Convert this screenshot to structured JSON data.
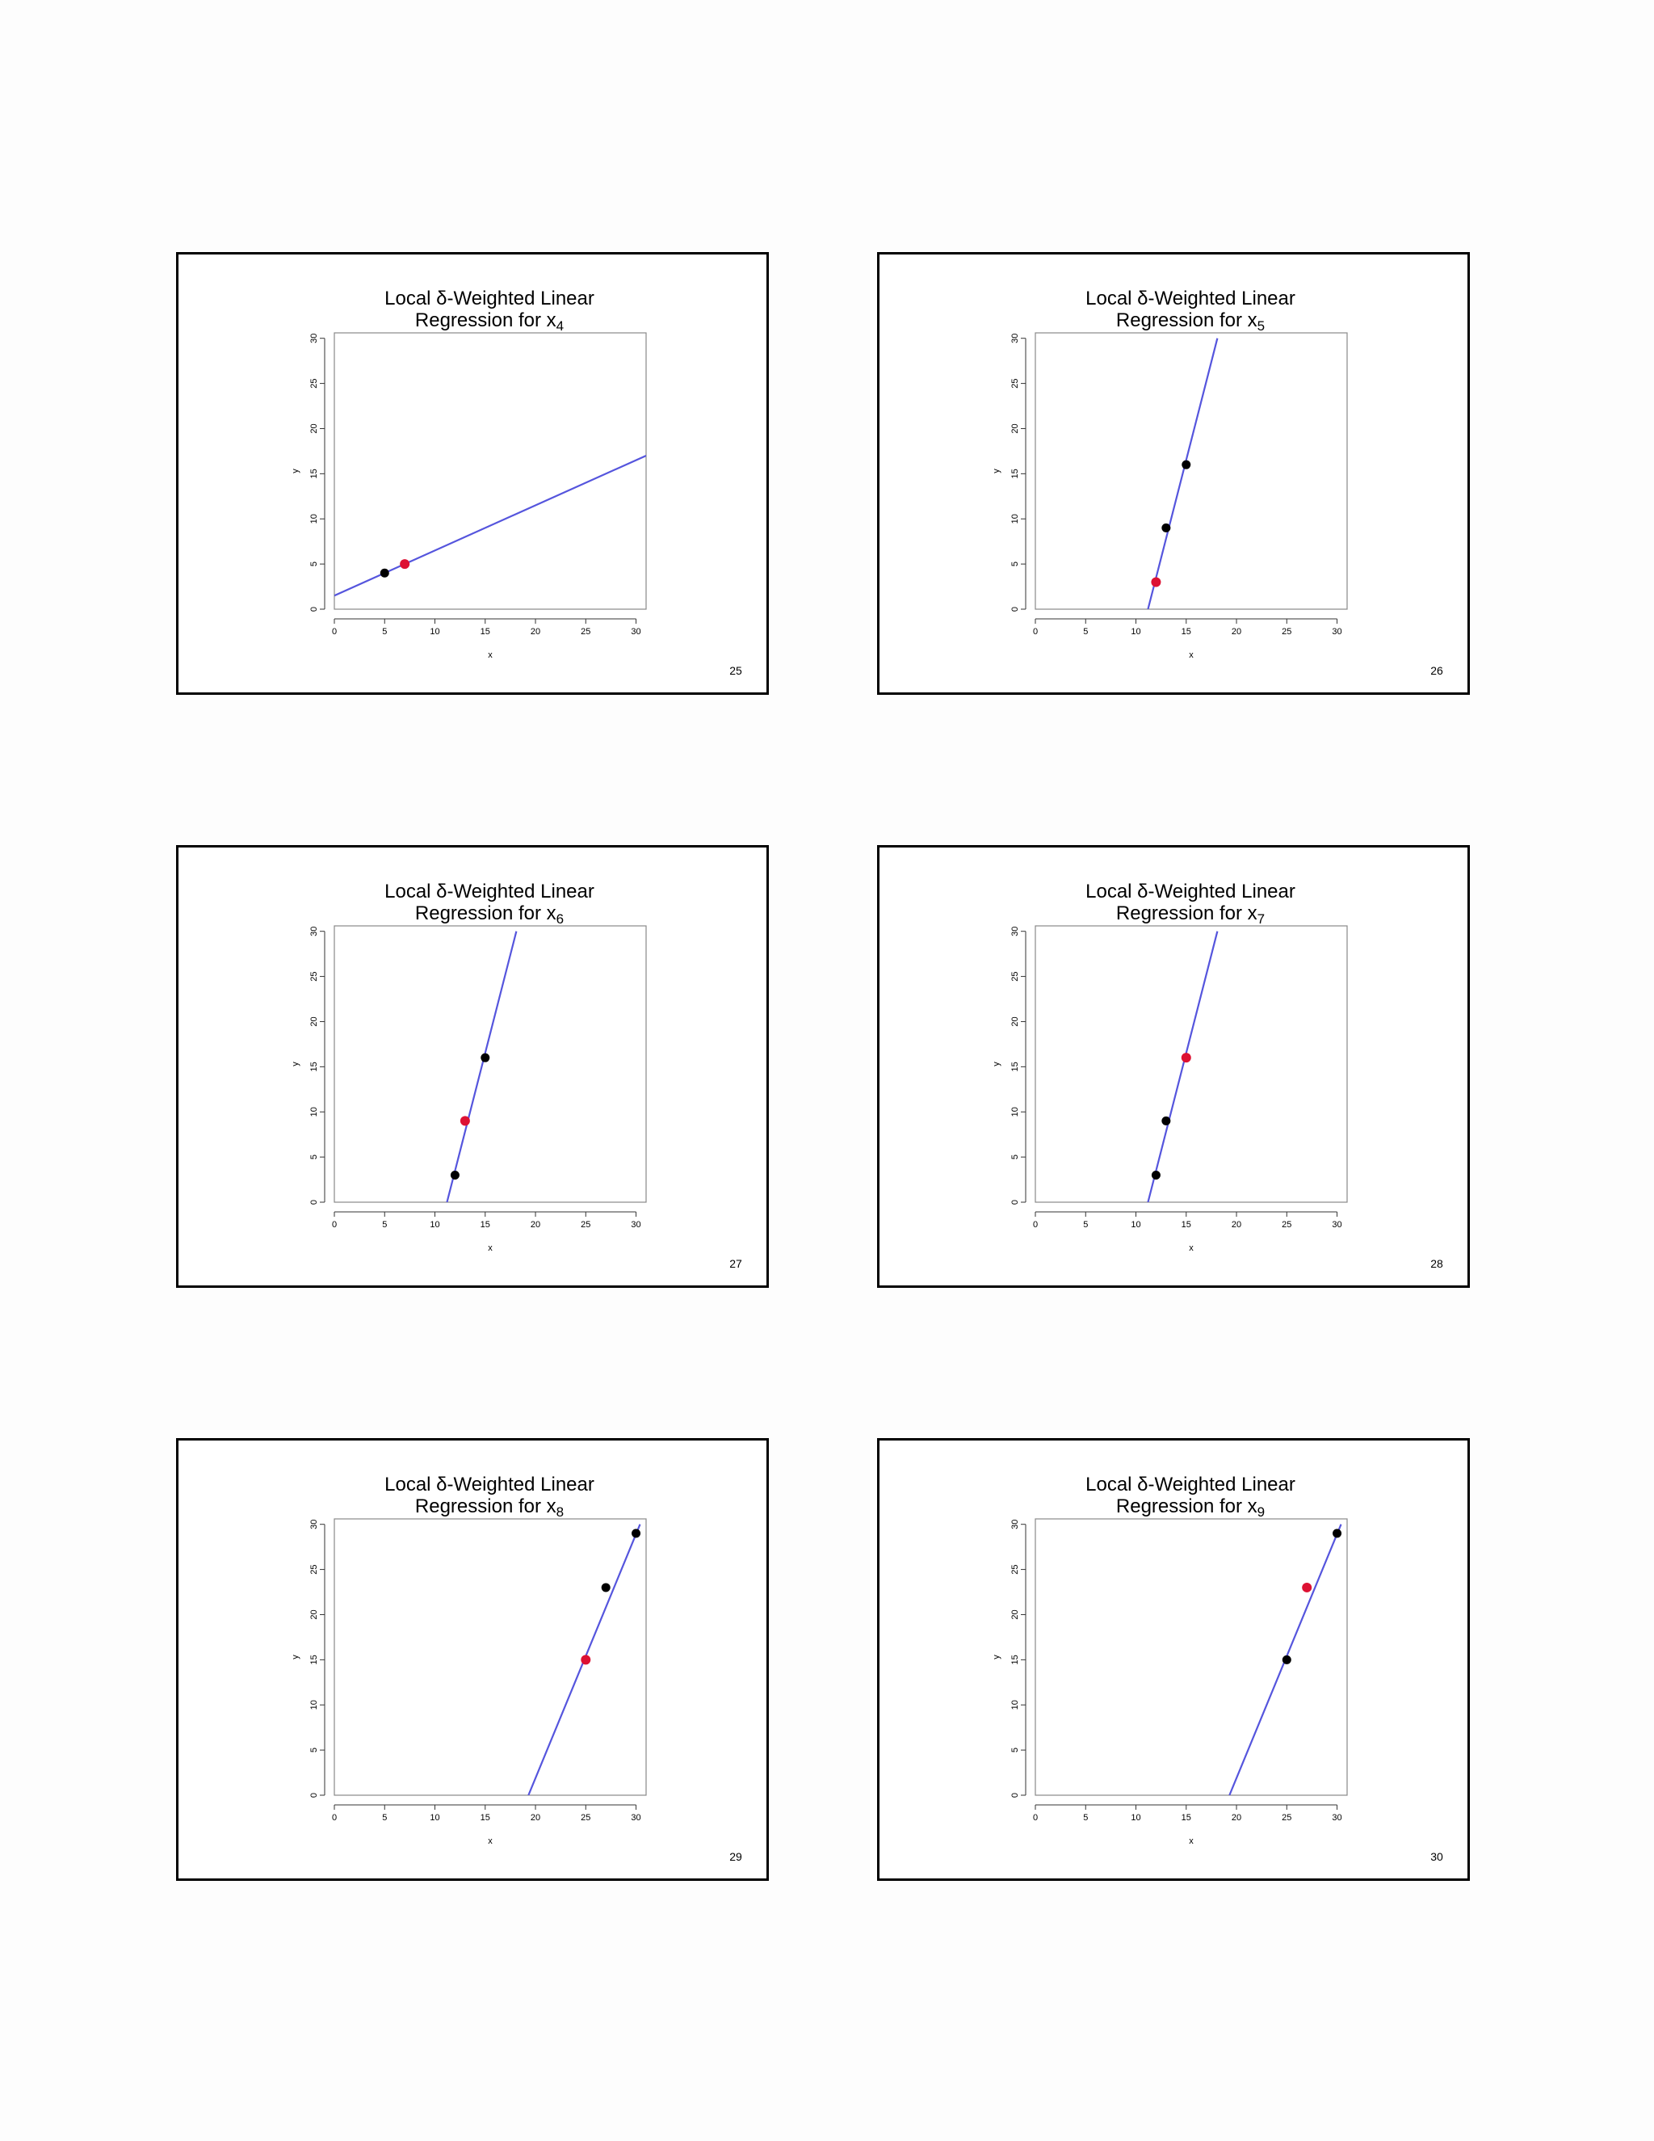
{
  "slides": [
    {
      "page": "25",
      "title_line1": "Local δ-Weighted Linear",
      "title_line2_prefix": "Regression for x",
      "title_subscript": "4"
    },
    {
      "page": "26",
      "title_line1": "Local δ-Weighted Linear",
      "title_line2_prefix": "Regression for x",
      "title_subscript": "5"
    },
    {
      "page": "27",
      "title_line1": "Local δ-Weighted Linear",
      "title_line2_prefix": "Regression for x",
      "title_subscript": "6"
    },
    {
      "page": "28",
      "title_line1": "Local δ-Weighted Linear",
      "title_line2_prefix": "Regression for x",
      "title_subscript": "7"
    },
    {
      "page": "29",
      "title_line1": "Local δ-Weighted Linear",
      "title_line2_prefix": "Regression for x",
      "title_subscript": "8"
    },
    {
      "page": "30",
      "title_line1": "Local δ-Weighted Linear",
      "title_line2_prefix": "Regression for x",
      "title_subscript": "9"
    }
  ],
  "colors": {
    "line": "#5555dd",
    "query_point": "#dd1133",
    "data_point": "#000000"
  },
  "chart_data": [
    {
      "type": "scatter",
      "title": "Local δ-Weighted Linear Regression for x4",
      "xlabel": "x",
      "ylabel": "y",
      "xlim": [
        0,
        31
      ],
      "ylim": [
        0,
        30
      ],
      "xticks": [
        0,
        5,
        10,
        15,
        20,
        25,
        30
      ],
      "yticks": [
        0,
        5,
        10,
        15,
        20,
        25,
        30
      ],
      "points": [
        {
          "x": 5,
          "y": 4,
          "kind": "data"
        },
        {
          "x": 7,
          "y": 5,
          "kind": "query"
        }
      ],
      "line": {
        "x1": 0,
        "y1": 1.5,
        "x2": 31,
        "y2": 17
      }
    },
    {
      "type": "scatter",
      "title": "Local δ-Weighted Linear Regression for x5",
      "xlabel": "x",
      "ylabel": "y",
      "xlim": [
        0,
        31
      ],
      "ylim": [
        0,
        30
      ],
      "xticks": [
        0,
        5,
        10,
        15,
        20,
        25,
        30
      ],
      "yticks": [
        0,
        5,
        10,
        15,
        20,
        25,
        30
      ],
      "points": [
        {
          "x": 15,
          "y": 16,
          "kind": "data"
        },
        {
          "x": 13,
          "y": 9,
          "kind": "data"
        },
        {
          "x": 12,
          "y": 3,
          "kind": "query"
        }
      ],
      "line": {
        "x1": 11.2,
        "y1": 0,
        "x2": 18.1,
        "y2": 30
      }
    },
    {
      "type": "scatter",
      "title": "Local δ-Weighted Linear Regression for x6",
      "xlabel": "x",
      "ylabel": "y",
      "xlim": [
        0,
        31
      ],
      "ylim": [
        0,
        30
      ],
      "xticks": [
        0,
        5,
        10,
        15,
        20,
        25,
        30
      ],
      "yticks": [
        0,
        5,
        10,
        15,
        20,
        25,
        30
      ],
      "points": [
        {
          "x": 15,
          "y": 16,
          "kind": "data"
        },
        {
          "x": 12,
          "y": 3,
          "kind": "data"
        },
        {
          "x": 13,
          "y": 9,
          "kind": "query"
        }
      ],
      "line": {
        "x1": 11.2,
        "y1": 0,
        "x2": 18.1,
        "y2": 30
      }
    },
    {
      "type": "scatter",
      "title": "Local δ-Weighted Linear Regression for x7",
      "xlabel": "x",
      "ylabel": "y",
      "xlim": [
        0,
        31
      ],
      "ylim": [
        0,
        30
      ],
      "xticks": [
        0,
        5,
        10,
        15,
        20,
        25,
        30
      ],
      "yticks": [
        0,
        5,
        10,
        15,
        20,
        25,
        30
      ],
      "points": [
        {
          "x": 13,
          "y": 9,
          "kind": "data"
        },
        {
          "x": 12,
          "y": 3,
          "kind": "data"
        },
        {
          "x": 15,
          "y": 16,
          "kind": "query"
        }
      ],
      "line": {
        "x1": 11.2,
        "y1": 0,
        "x2": 18.1,
        "y2": 30
      }
    },
    {
      "type": "scatter",
      "title": "Local δ-Weighted Linear Regression for x8",
      "xlabel": "x",
      "ylabel": "y",
      "xlim": [
        0,
        31
      ],
      "ylim": [
        0,
        30
      ],
      "xticks": [
        0,
        5,
        10,
        15,
        20,
        25,
        30
      ],
      "yticks": [
        0,
        5,
        10,
        15,
        20,
        25,
        30
      ],
      "points": [
        {
          "x": 30,
          "y": 29,
          "kind": "data"
        },
        {
          "x": 27,
          "y": 23,
          "kind": "data"
        },
        {
          "x": 25,
          "y": 15,
          "kind": "query"
        }
      ],
      "line": {
        "x1": 19.3,
        "y1": 0,
        "x2": 30.4,
        "y2": 30
      }
    },
    {
      "type": "scatter",
      "title": "Local δ-Weighted Linear Regression for x9",
      "xlabel": "x",
      "ylabel": "y",
      "xlim": [
        0,
        31
      ],
      "ylim": [
        0,
        30
      ],
      "xticks": [
        0,
        5,
        10,
        15,
        20,
        25,
        30
      ],
      "yticks": [
        0,
        5,
        10,
        15,
        20,
        25,
        30
      ],
      "points": [
        {
          "x": 30,
          "y": 29,
          "kind": "data"
        },
        {
          "x": 25,
          "y": 15,
          "kind": "data"
        },
        {
          "x": 27,
          "y": 23,
          "kind": "query"
        }
      ],
      "line": {
        "x1": 19.3,
        "y1": 0,
        "x2": 30.4,
        "y2": 30
      }
    }
  ]
}
